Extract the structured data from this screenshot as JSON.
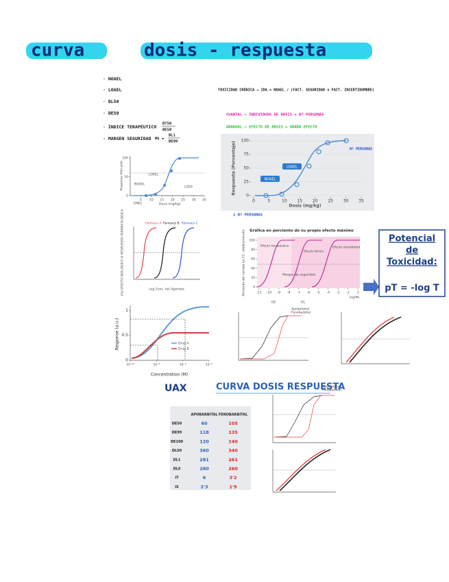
{
  "header": {
    "title_left": "curva",
    "title_right": "dosis - respuesta"
  },
  "list": [
    "NOAEL",
    "LOAEL",
    "DL50",
    "DE50",
    "ÍNDICE TERAPÉUTICO",
    "MARGEN SEGURIDAD"
  ],
  "formulas": {
    "it_num": "DT50",
    "it_den": "DE50",
    "ms_prefix": "MS =",
    "ms_num": "DL1",
    "ms_den": "DE99"
  },
  "notes": {
    "toxicidad": "TOXICIDAD CRÓNICA → IDA = NOAEL / (FACT. SEGURIDAD x FACT. INCERTIDUMBRE)",
    "cuantal": "CUANTAL ↗ INDIVIDUOS DE DOSIS = Nº PERSONAS",
    "gradual": "GRADUAL ↗ EFECTO DE DOSIS = GRADO EFECTO"
  },
  "small_chart": {
    "y_label": "Response (Percent)",
    "x_label": "Dosis (mg/kg)",
    "noael": "NOAEL",
    "loael": "LOAEL",
    "ld50": "LD50",
    "dnel": "DNEL",
    "xticks": [
      5,
      10,
      15,
      20,
      25,
      30,
      35
    ],
    "yticks": [
      0,
      50,
      100
    ]
  },
  "big_chart": {
    "y_label": "Respuesta (Porcentaje)",
    "x_label": "Dosis (mg/kg)",
    "noael": "NOAEL",
    "loael": "LOAEL",
    "note_top": "Nº PERSONAS",
    "note_bottom": "x Nº PERSONAS",
    "xticks": [
      0,
      5,
      10,
      15,
      20,
      25,
      30,
      35
    ],
    "yticks": [
      0,
      25,
      50,
      75,
      100
    ]
  },
  "drugs_chart": {
    "series": [
      "Fármaco A",
      "Fármaco B",
      "Fármaco C"
    ],
    "y_label": "(%) EFECTO BIOLÓGICO O RESPUESTA FARMACOLÓGICA",
    "x_label": "Log Conc. del Agonista"
  },
  "pink_chart": {
    "title": "Gráfica en porciento de su propio efecto máximo",
    "y_label": "Porciento del cambio en F.C. latidos/minuto",
    "x_label": "log(M)",
    "terapeutico": "Efecto terapéutico",
    "toxico": "Efecto tóxico",
    "mortalidad": "Efecto mortalidad",
    "margen": "Margen de seguridad",
    "de": "DE",
    "dl": "DL",
    "xticks": [
      -11,
      -10,
      -9,
      -8,
      -7,
      -6,
      -5,
      -4,
      -3,
      -2,
      -1
    ],
    "yticks": [
      0,
      20,
      40,
      60,
      80,
      100
    ]
  },
  "potency_box": {
    "line1": "Potencial",
    "line2": "de",
    "line3": "Toxicidad:",
    "formula": "pT = -log T"
  },
  "response_chart": {
    "y_label": "Response (a.u.)",
    "x_label": "Concentration (M)",
    "drug_a": "Drug A",
    "drug_b": "Drug B",
    "yticks": [
      0,
      0.5,
      1
    ],
    "xticks": [
      {
        "value": -10,
        "label": "10⁻¹⁰"
      },
      {
        "value": -8,
        "label": "10⁻⁸"
      },
      {
        "value": -6,
        "label": "10⁻⁶"
      },
      {
        "value": -4,
        "label": "10⁻⁴"
      }
    ]
  },
  "uax": {
    "logo": "UAX",
    "title": "CURVA DOSIS RESPUESTA"
  },
  "legend_small": [
    "Apobarbital",
    "Fenobarbital"
  ],
  "table": {
    "header": [
      "",
      "APOBARBITAL",
      "FENOBARBITAL"
    ],
    "rows": [
      [
        "DE50",
        "60",
        "105"
      ],
      [
        "DE99",
        "118",
        "135"
      ],
      [
        "DE100",
        "120",
        "140"
      ],
      [
        "DL50",
        "360",
        "340"
      ],
      [
        "DL1",
        "281",
        "261"
      ],
      [
        "DL0",
        "280",
        "260"
      ],
      [
        "IT",
        "6",
        "3'2"
      ],
      [
        "IS",
        "2'3",
        "1'9"
      ]
    ]
  }
}
